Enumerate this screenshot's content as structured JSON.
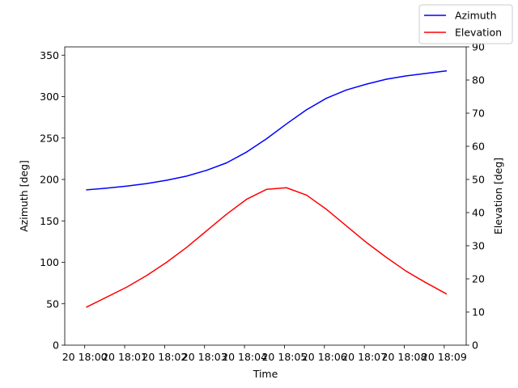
{
  "chart_data": {
    "type": "line",
    "xlabel": "Time",
    "ylabel_left": "Azimuth [deg]",
    "ylabel_right": "Elevation [deg]",
    "x_tick_labels": [
      "20 18:00",
      "20 18:01",
      "20 18:02",
      "20 18:03",
      "20 18:04",
      "20 18:05",
      "20 18:06",
      "20 18:07",
      "20 18:08",
      "20 18:09"
    ],
    "x_tick_values": [
      0,
      1,
      2,
      3,
      4,
      5,
      6,
      7,
      8,
      9
    ],
    "xlim": [
      -0.5,
      9.55
    ],
    "y_left_ticks": [
      0,
      50,
      100,
      150,
      200,
      250,
      300,
      350
    ],
    "y_left_lim": [
      0,
      360
    ],
    "y_right_ticks": [
      0,
      10,
      20,
      30,
      40,
      50,
      60,
      70,
      80,
      90
    ],
    "y_right_lim": [
      0,
      90
    ],
    "legend_position": "upper right (outside axes)",
    "grid": false,
    "x": [
      0.05,
      0.55,
      1.05,
      1.55,
      2.05,
      2.55,
      3.05,
      3.55,
      4.05,
      4.55,
      5.05,
      5.55,
      6.05,
      6.55,
      7.05,
      7.55,
      8.05,
      8.55,
      9.05
    ],
    "series": [
      {
        "name": "Azimuth",
        "axis": "left",
        "color": "#0000ff",
        "values": [
          187.5,
          189.5,
          192,
          195,
          199,
          204,
          211,
          220,
          233,
          249,
          267,
          284,
          298,
          308,
          315,
          321,
          325,
          328,
          331
        ]
      },
      {
        "name": "Elevation",
        "axis": "right",
        "color": "#ff0000",
        "values": [
          11.5,
          14.5,
          17.5,
          21,
          25,
          29.5,
          34.5,
          39.5,
          44,
          47,
          47.5,
          45.3,
          41,
          36,
          31,
          26.5,
          22.3,
          18.8,
          15.5
        ]
      }
    ]
  }
}
